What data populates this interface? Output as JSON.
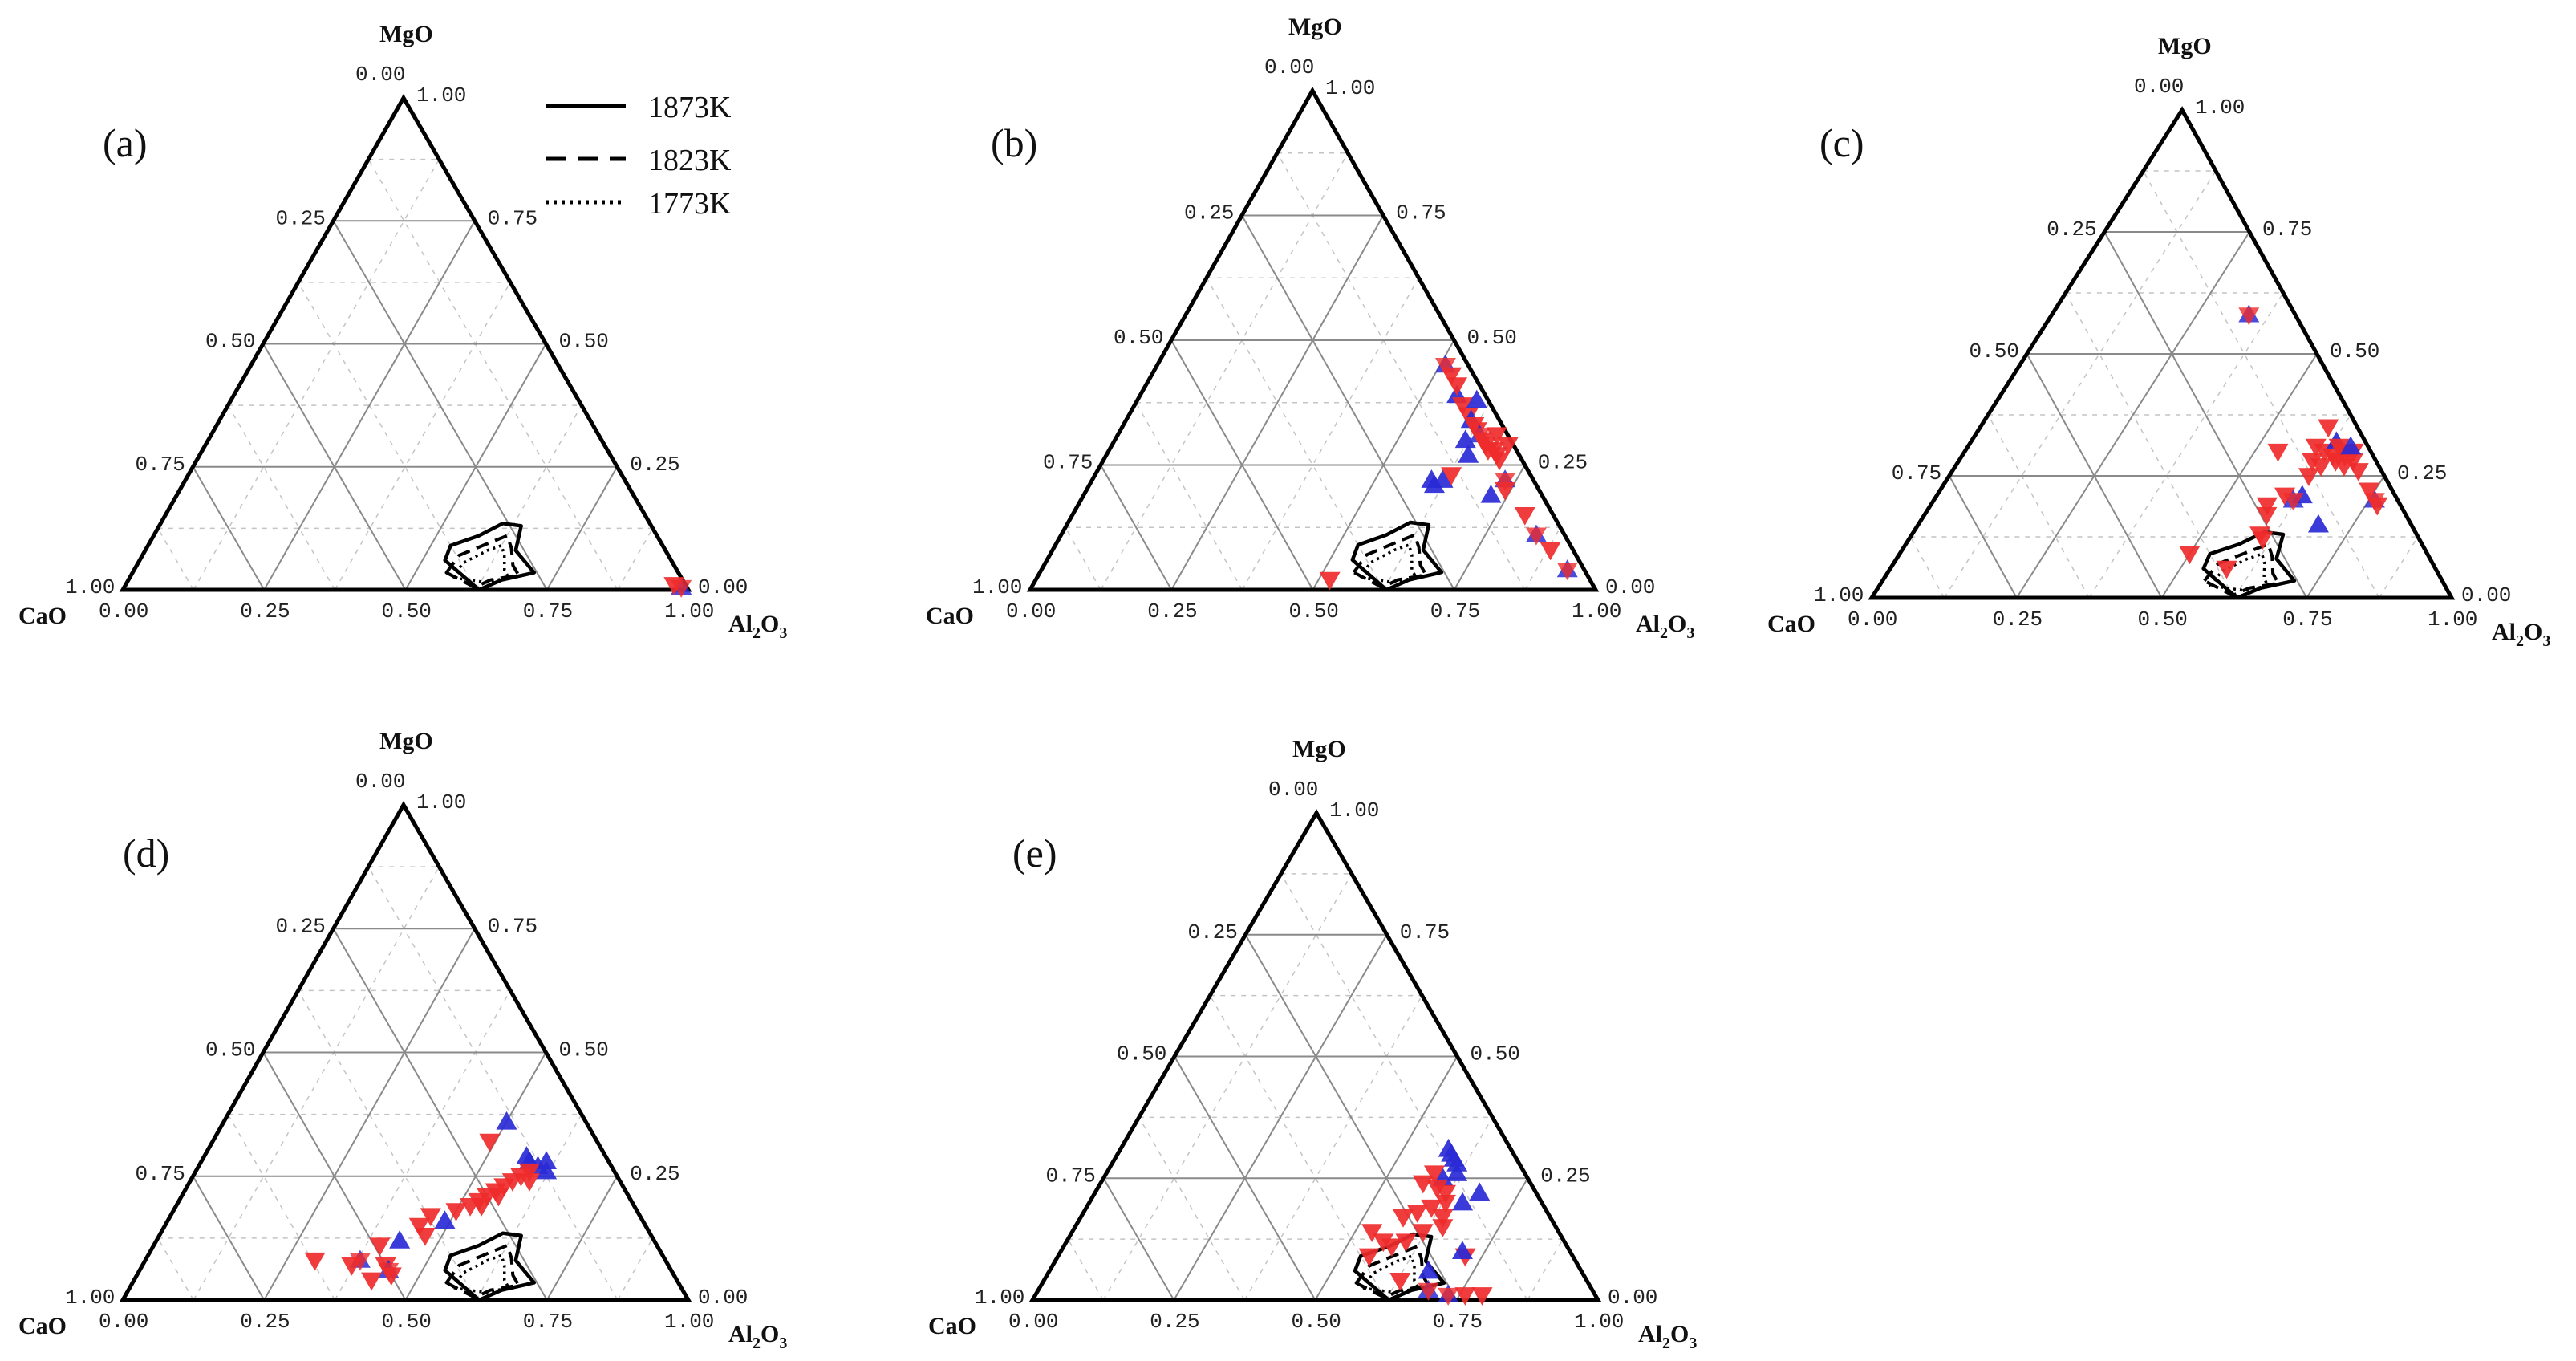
{
  "chart_data": {
    "type": "ternary-scatter",
    "shared": {
      "axes": {
        "top": "MgO",
        "left": "CaO",
        "right_main": "Al",
        "right_sub1": "2",
        "right_mid": "O",
        "right_sub2": "3"
      },
      "ticks": [
        "0.00",
        "0.25",
        "0.50",
        "0.75",
        "1.00"
      ],
      "legend": [
        {
          "label": "1873K",
          "style": "solid"
        },
        {
          "label": "1823K",
          "style": "dashed"
        },
        {
          "label": "1773K",
          "style": "dotted"
        }
      ],
      "marker_colors": {
        "up": "#2a2ad6",
        "down": "#ef2b2b",
        "star": "#b5245a"
      },
      "liquid_region": {
        "1873K": [
          [
            0.54,
            0.06
          ],
          [
            0.535,
            0.09
          ],
          [
            0.575,
            0.11
          ],
          [
            0.605,
            0.135
          ],
          [
            0.64,
            0.13
          ],
          [
            0.655,
            0.08
          ],
          [
            0.71,
            0.035
          ],
          [
            0.66,
            0.02
          ],
          [
            0.63,
            0.0
          ]
        ],
        "1823K": [
          [
            0.555,
            0.035
          ],
          [
            0.56,
            0.07
          ],
          [
            0.6,
            0.095
          ],
          [
            0.625,
            0.11
          ],
          [
            0.645,
            0.085
          ],
          [
            0.665,
            0.05
          ],
          [
            0.685,
            0.03
          ],
          [
            0.64,
            0.02
          ],
          [
            0.62,
            0.005
          ]
        ],
        "1773K": [
          [
            0.57,
            0.025
          ],
          [
            0.575,
            0.055
          ],
          [
            0.605,
            0.08
          ],
          [
            0.625,
            0.09
          ],
          [
            0.64,
            0.07
          ],
          [
            0.655,
            0.04
          ],
          [
            0.67,
            0.025
          ],
          [
            0.635,
            0.015
          ]
        ]
      }
    },
    "panels": [
      {
        "label": "(a)",
        "points": [
          {
            "a": 0.985,
            "m": 0.005,
            "s": "star"
          },
          {
            "a": 0.97,
            "m": 0.01,
            "s": "down"
          }
        ]
      },
      {
        "label": "(b)",
        "points": [
          {
            "a": 0.51,
            "m": 0.45,
            "s": "star"
          },
          {
            "a": 0.53,
            "m": 0.43,
            "s": "down"
          },
          {
            "a": 0.56,
            "m": 0.39,
            "s": "up"
          },
          {
            "a": 0.58,
            "m": 0.37,
            "s": "down"
          },
          {
            "a": 0.6,
            "m": 0.35,
            "s": "down"
          },
          {
            "a": 0.61,
            "m": 0.34,
            "s": "up"
          },
          {
            "a": 0.62,
            "m": 0.33,
            "s": "down"
          },
          {
            "a": 0.63,
            "m": 0.32,
            "s": "down"
          },
          {
            "a": 0.64,
            "m": 0.31,
            "s": "star"
          },
          {
            "a": 0.65,
            "m": 0.3,
            "s": "down"
          },
          {
            "a": 0.66,
            "m": 0.29,
            "s": "down"
          },
          {
            "a": 0.67,
            "m": 0.28,
            "s": "down"
          },
          {
            "a": 0.68,
            "m": 0.28,
            "s": "down"
          },
          {
            "a": 0.69,
            "m": 0.27,
            "s": "down"
          },
          {
            "a": 0.7,
            "m": 0.26,
            "s": "down"
          },
          {
            "a": 0.7,
            "m": 0.29,
            "s": "down"
          },
          {
            "a": 0.67,
            "m": 0.31,
            "s": "down"
          },
          {
            "a": 0.62,
            "m": 0.3,
            "s": "up"
          },
          {
            "a": 0.64,
            "m": 0.27,
            "s": "up"
          },
          {
            "a": 0.6,
            "m": 0.22,
            "s": "up"
          },
          {
            "a": 0.61,
            "m": 0.21,
            "s": "up"
          },
          {
            "a": 0.62,
            "m": 0.22,
            "s": "up"
          },
          {
            "a": 0.63,
            "m": 0.23,
            "s": "down"
          },
          {
            "a": 0.72,
            "m": 0.19,
            "s": "up"
          },
          {
            "a": 0.73,
            "m": 0.22,
            "s": "star"
          },
          {
            "a": 0.74,
            "m": 0.2,
            "s": "down"
          },
          {
            "a": 0.8,
            "m": 0.15,
            "s": "down"
          },
          {
            "a": 0.84,
            "m": 0.11,
            "s": "star"
          },
          {
            "a": 0.88,
            "m": 0.08,
            "s": "down"
          },
          {
            "a": 0.93,
            "m": 0.04,
            "s": "star"
          },
          {
            "a": 0.6,
            "m": 0.38,
            "s": "up"
          },
          {
            "a": 0.55,
            "m": 0.41,
            "s": "down"
          },
          {
            "a": 0.52,
            "m": 0.02,
            "s": "down"
          }
        ]
      },
      {
        "label": "(c)",
        "points": [
          {
            "a": 0.34,
            "m": 0.58,
            "s": "star"
          },
          {
            "a": 0.54,
            "m": 0.3,
            "s": "down"
          },
          {
            "a": 0.6,
            "m": 0.31,
            "s": "down"
          },
          {
            "a": 0.62,
            "m": 0.3,
            "s": "down"
          },
          {
            "a": 0.63,
            "m": 0.32,
            "s": "up"
          },
          {
            "a": 0.64,
            "m": 0.31,
            "s": "down"
          },
          {
            "a": 0.65,
            "m": 0.3,
            "s": "down"
          },
          {
            "a": 0.66,
            "m": 0.29,
            "s": "down"
          },
          {
            "a": 0.67,
            "m": 0.3,
            "s": "down"
          },
          {
            "a": 0.68,
            "m": 0.28,
            "s": "down"
          },
          {
            "a": 0.64,
            "m": 0.29,
            "s": "down"
          },
          {
            "a": 0.65,
            "m": 0.28,
            "s": "down"
          },
          {
            "a": 0.67,
            "m": 0.27,
            "s": "down"
          },
          {
            "a": 0.66,
            "m": 0.31,
            "s": "up"
          },
          {
            "a": 0.63,
            "m": 0.27,
            "s": "down"
          },
          {
            "a": 0.61,
            "m": 0.28,
            "s": "down"
          },
          {
            "a": 0.62,
            "m": 0.25,
            "s": "down"
          },
          {
            "a": 0.6,
            "m": 0.21,
            "s": "down"
          },
          {
            "a": 0.63,
            "m": 0.21,
            "s": "up"
          },
          {
            "a": 0.62,
            "m": 0.2,
            "s": "star"
          },
          {
            "a": 0.58,
            "m": 0.19,
            "s": "down"
          },
          {
            "a": 0.59,
            "m": 0.17,
            "s": "down"
          },
          {
            "a": 0.6,
            "m": 0.13,
            "s": "down"
          },
          {
            "a": 0.61,
            "m": 0.12,
            "s": "down"
          },
          {
            "a": 0.58,
            "m": 0.06,
            "s": "down"
          },
          {
            "a": 0.5,
            "m": 0.09,
            "s": "down"
          },
          {
            "a": 0.69,
            "m": 0.15,
            "s": "up"
          },
          {
            "a": 0.76,
            "m": 0.2,
            "s": "star"
          },
          {
            "a": 0.77,
            "m": 0.19,
            "s": "down"
          },
          {
            "a": 0.74,
            "m": 0.22,
            "s": "down"
          },
          {
            "a": 0.6,
            "m": 0.35,
            "s": "down"
          },
          {
            "a": 0.7,
            "m": 0.26,
            "s": "down"
          }
        ]
      },
      {
        "label": "(d)",
        "points": [
          {
            "a": 0.5,
            "m": 0.36,
            "s": "up"
          },
          {
            "a": 0.49,
            "m": 0.32,
            "s": "down"
          },
          {
            "a": 0.57,
            "m": 0.29,
            "s": "up"
          },
          {
            "a": 0.58,
            "m": 0.28,
            "s": "up"
          },
          {
            "a": 0.6,
            "m": 0.27,
            "s": "up"
          },
          {
            "a": 0.61,
            "m": 0.28,
            "s": "up"
          },
          {
            "a": 0.62,
            "m": 0.26,
            "s": "up"
          },
          {
            "a": 0.59,
            "m": 0.26,
            "s": "down"
          },
          {
            "a": 0.58,
            "m": 0.25,
            "s": "down"
          },
          {
            "a": 0.57,
            "m": 0.24,
            "s": "down"
          },
          {
            "a": 0.56,
            "m": 0.23,
            "s": "down"
          },
          {
            "a": 0.55,
            "m": 0.22,
            "s": "down"
          },
          {
            "a": 0.54,
            "m": 0.21,
            "s": "down"
          },
          {
            "a": 0.56,
            "m": 0.21,
            "s": "down"
          },
          {
            "a": 0.53,
            "m": 0.2,
            "s": "down"
          },
          {
            "a": 0.54,
            "m": 0.19,
            "s": "down"
          },
          {
            "a": 0.5,
            "m": 0.18,
            "s": "down"
          },
          {
            "a": 0.49,
            "m": 0.16,
            "s": "up"
          },
          {
            "a": 0.46,
            "m": 0.17,
            "s": "down"
          },
          {
            "a": 0.45,
            "m": 0.15,
            "s": "down"
          },
          {
            "a": 0.47,
            "m": 0.13,
            "s": "down"
          },
          {
            "a": 0.43,
            "m": 0.12,
            "s": "up"
          },
          {
            "a": 0.4,
            "m": 0.11,
            "s": "down"
          },
          {
            "a": 0.43,
            "m": 0.07,
            "s": "down"
          },
          {
            "a": 0.44,
            "m": 0.06,
            "s": "star"
          },
          {
            "a": 0.45,
            "m": 0.05,
            "s": "down"
          },
          {
            "a": 0.38,
            "m": 0.08,
            "s": "star"
          },
          {
            "a": 0.37,
            "m": 0.07,
            "s": "down"
          },
          {
            "a": 0.42,
            "m": 0.04,
            "s": "down"
          },
          {
            "a": 0.3,
            "m": 0.08,
            "s": "down"
          },
          {
            "a": 0.52,
            "m": 0.19,
            "s": "down"
          },
          {
            "a": 0.6,
            "m": 0.24,
            "s": "down"
          }
        ]
      },
      {
        "label": "(e)",
        "points": [
          {
            "a": 0.58,
            "m": 0.31,
            "s": "up"
          },
          {
            "a": 0.59,
            "m": 0.3,
            "s": "up"
          },
          {
            "a": 0.6,
            "m": 0.29,
            "s": "up"
          },
          {
            "a": 0.61,
            "m": 0.28,
            "s": "up"
          },
          {
            "a": 0.62,
            "m": 0.26,
            "s": "up"
          },
          {
            "a": 0.6,
            "m": 0.25,
            "s": "up"
          },
          {
            "a": 0.58,
            "m": 0.26,
            "s": "down"
          },
          {
            "a": 0.57,
            "m": 0.24,
            "s": "down"
          },
          {
            "a": 0.6,
            "m": 0.23,
            "s": "down"
          },
          {
            "a": 0.62,
            "m": 0.22,
            "s": "down"
          },
          {
            "a": 0.63,
            "m": 0.2,
            "s": "down"
          },
          {
            "a": 0.61,
            "m": 0.19,
            "s": "down"
          },
          {
            "a": 0.59,
            "m": 0.18,
            "s": "down"
          },
          {
            "a": 0.57,
            "m": 0.17,
            "s": "down"
          },
          {
            "a": 0.64,
            "m": 0.17,
            "s": "down"
          },
          {
            "a": 0.65,
            "m": 0.15,
            "s": "down"
          },
          {
            "a": 0.62,
            "m": 0.14,
            "s": "down"
          },
          {
            "a": 0.6,
            "m": 0.12,
            "s": "down"
          },
          {
            "a": 0.58,
            "m": 0.11,
            "s": "down"
          },
          {
            "a": 0.55,
            "m": 0.09,
            "s": "down"
          },
          {
            "a": 0.56,
            "m": 0.12,
            "s": "down"
          },
          {
            "a": 0.53,
            "m": 0.14,
            "s": "down"
          },
          {
            "a": 0.66,
            "m": 0.2,
            "s": "up"
          },
          {
            "a": 0.68,
            "m": 0.22,
            "s": "up"
          },
          {
            "a": 0.72,
            "m": 0.09,
            "s": "down"
          },
          {
            "a": 0.71,
            "m": 0.1,
            "s": "up"
          },
          {
            "a": 0.63,
            "m": 0.04,
            "s": "down"
          },
          {
            "a": 0.69,
            "m": 0.02,
            "s": "star"
          },
          {
            "a": 0.73,
            "m": 0.01,
            "s": "star"
          },
          {
            "a": 0.76,
            "m": 0.01,
            "s": "down"
          },
          {
            "a": 0.79,
            "m": 0.01,
            "s": "down"
          },
          {
            "a": 0.67,
            "m": 0.06,
            "s": "up"
          }
        ]
      }
    ]
  }
}
